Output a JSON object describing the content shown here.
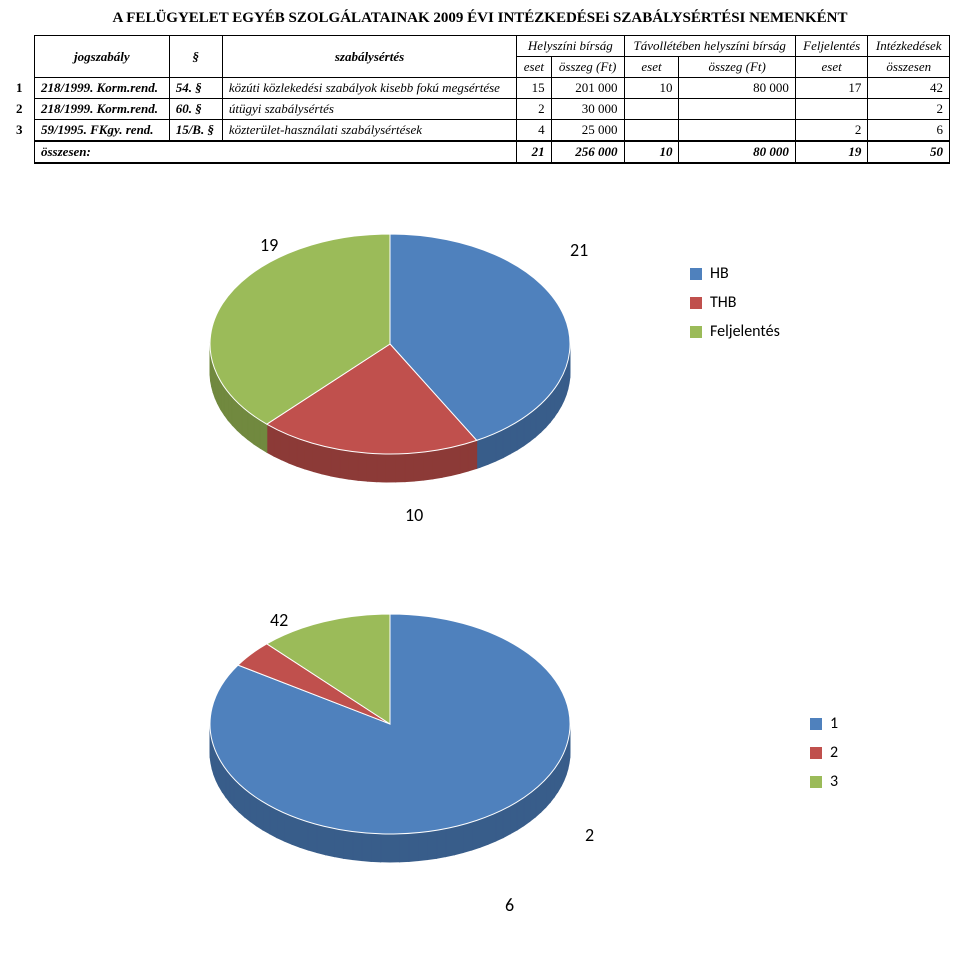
{
  "title": "A FELÜGYELET EGYÉB SZOLGÁLATAINAK 2009 ÉVI INTÉZKEDÉSEi SZABÁLYSÉRTÉSI NEMENKÉNT",
  "headers": {
    "jogszabaly": "jogszabály",
    "para": "§",
    "szabalysertes": "szabálysértés",
    "helyszini": "Helyszíni bírság",
    "tavol": "Távollétében helyszíni bírság",
    "feljelentes": "Feljelentés",
    "intezkedesek": "Intézkedések",
    "eset": "eset",
    "osszeg": "összeg (Ft)",
    "osszesen": "összesen"
  },
  "rows": [
    {
      "n": "1",
      "law": "218/1999. Korm.rend.",
      "para": "54. §",
      "desc": "közúti közlekedési szabályok kisebb fokú megsértése",
      "hb_e": "15",
      "hb_o": "201 000",
      "thb_e": "10",
      "thb_o": "80 000",
      "fel": "17",
      "int": "42"
    },
    {
      "n": "2",
      "law": "218/1999. Korm.rend.",
      "para": "60. §",
      "desc": "útügyi szabálysértés",
      "hb_e": "2",
      "hb_o": "30 000",
      "thb_e": "",
      "thb_o": "",
      "fel": "",
      "int": "2"
    },
    {
      "n": "3",
      "law": "59/1995. FKgy. rend.",
      "para": "15/B. §",
      "desc": "közterület-használati szabálysértések",
      "hb_e": "4",
      "hb_o": "25 000",
      "thb_e": "",
      "thb_o": "",
      "fel": "2",
      "int": "6"
    }
  ],
  "total": {
    "label": "összesen:",
    "hb_e": "21",
    "hb_o": "256 000",
    "thb_e": "10",
    "thb_o": "80 000",
    "fel": "19",
    "int": "50"
  },
  "chart1": {
    "type": "pie",
    "slices": [
      {
        "label": "HB",
        "value": 21,
        "color": "#4f81bd",
        "dark": "#385d8a"
      },
      {
        "label": "THB",
        "value": 10,
        "color": "#c0504d",
        "dark": "#8c3a37"
      },
      {
        "label": "Feljelentés",
        "value": 19,
        "color": "#9bbb59",
        "dark": "#71893f"
      }
    ],
    "label_19": "19",
    "label_21": "21",
    "label_10": "10"
  },
  "chart2": {
    "type": "pie",
    "slices": [
      {
        "label": "1",
        "value": 42,
        "color": "#4f81bd",
        "dark": "#385d8a"
      },
      {
        "label": "2",
        "value": 2,
        "color": "#c0504d",
        "dark": "#8c3a37"
      },
      {
        "label": "3",
        "value": 6,
        "color": "#9bbb59",
        "dark": "#71893f"
      }
    ],
    "label_42": "42",
    "label_2": "2",
    "label_6": "6"
  }
}
